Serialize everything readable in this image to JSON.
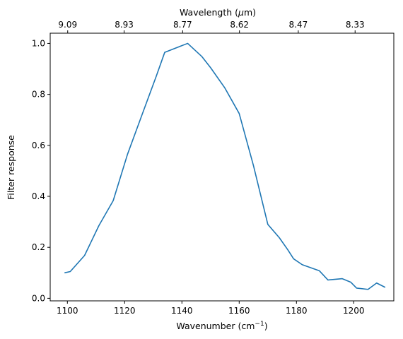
{
  "chart_data": {
    "type": "line",
    "title": "",
    "xlabel": "Wavenumber (cm",
    "xlabel_sup": "−1",
    "xlabel_close": ")",
    "ylabel": "Filter response",
    "top_xlabel": "Wavelength (",
    "top_xlabel_mu": "μ",
    "top_xlabel_unit": "m)",
    "xlim": [
      1094,
      1214
    ],
    "ylim": [
      -0.01,
      1.04
    ],
    "xticks": [
      1100,
      1120,
      1140,
      1160,
      1180,
      1200
    ],
    "xtick_labels": [
      "1100",
      "1120",
      "1140",
      "1160",
      "1180",
      "1200"
    ],
    "yticks": [
      0.0,
      0.2,
      0.4,
      0.6,
      0.8,
      1.0
    ],
    "ytick_labels": [
      "0.0",
      "0.2",
      "0.4",
      "0.6",
      "0.8",
      "1.0"
    ],
    "top_xticks_wavelength_um": [
      9.09,
      8.93,
      8.77,
      8.62,
      8.47,
      8.33
    ],
    "top_xtick_labels": [
      "9.09",
      "8.93",
      "8.77",
      "8.62",
      "8.47",
      "8.33"
    ],
    "grid": false,
    "line_color": "#1f77b4",
    "series": [
      {
        "x": [
          1099,
          1101,
          1106,
          1111,
          1116,
          1121,
          1126,
          1131,
          1134,
          1142,
          1147,
          1150,
          1155,
          1160,
          1165,
          1170,
          1174,
          1177,
          1179,
          1182,
          1188,
          1191,
          1196,
          1199,
          1201,
          1205,
          1208,
          1211
        ],
        "y": [
          0.1,
          0.105,
          0.168,
          0.285,
          0.383,
          0.565,
          0.718,
          0.87,
          0.965,
          1.0,
          0.948,
          0.905,
          0.825,
          0.725,
          0.52,
          0.29,
          0.238,
          0.19,
          0.155,
          0.132,
          0.108,
          0.072,
          0.077,
          0.063,
          0.04,
          0.035,
          0.06,
          0.043
        ]
      }
    ]
  }
}
